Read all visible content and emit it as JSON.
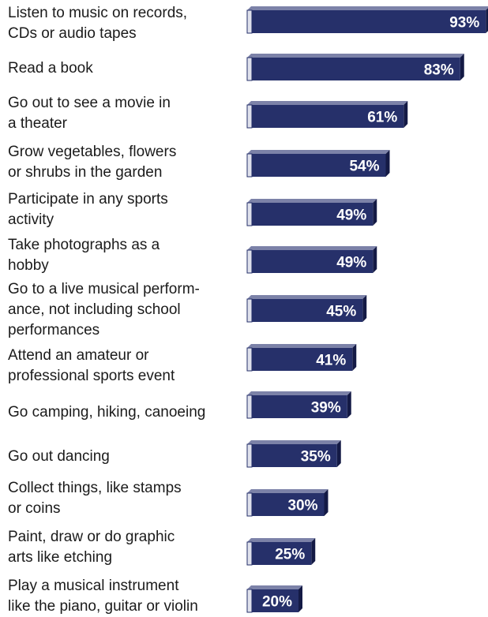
{
  "chart_data": {
    "type": "bar",
    "orientation": "horizontal",
    "categories": [
      "Listen to music on records,\nCDs or audio tapes",
      "Read a book",
      "Go out to see a movie in\na theater",
      "Grow vegetables, flowers\nor shrubs in the garden",
      "Participate in any sports\nactivity",
      "Take photographs as a\nhobby",
      "Go to a live musical perform-\nance, not including school\nperformances",
      "Attend an amateur or\nprofessional sports event",
      "Go camping, hiking, canoeing",
      "Go out dancing",
      "Collect things, like stamps\nor coins",
      "Paint, draw or do graphic\narts like etching",
      "Play a musical instrument\nlike the piano, guitar or violin"
    ],
    "values": [
      93,
      83,
      61,
      54,
      49,
      49,
      45,
      41,
      39,
      35,
      30,
      25,
      20
    ],
    "value_labels": [
      "93%",
      "83%",
      "61%",
      "54%",
      "49%",
      "49%",
      "45%",
      "41%",
      "39%",
      "35%",
      "30%",
      "25%",
      "20%"
    ],
    "unit": "%",
    "bar_color": "#26306a",
    "grid": false,
    "legend": "none"
  }
}
